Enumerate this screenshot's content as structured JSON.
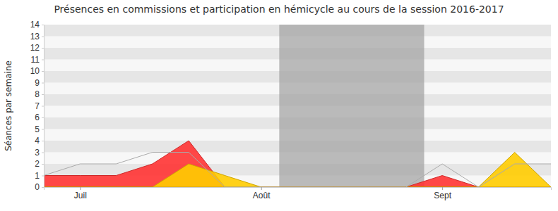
{
  "chart_data": {
    "type": "area",
    "title": "Présences en commissions et participation en hémicycle au cours de la session 2016-2017",
    "y_label": "Séances par semaine",
    "categories": [
      null,
      "Juil",
      null,
      null,
      null,
      null,
      "Août",
      null,
      null,
      null,
      null,
      "Sept",
      null,
      null,
      null
    ],
    "series": [
      {
        "type": "area",
        "color": "#ff3333",
        "values": [
          1,
          1,
          1,
          2,
          4,
          0,
          0,
          0,
          0,
          0,
          0,
          1,
          0,
          0,
          0
        ]
      },
      {
        "type": "area",
        "color": "#ffcc00",
        "values": [
          0,
          0,
          0,
          0,
          2,
          1,
          0,
          0,
          0,
          0,
          0,
          0,
          0,
          3,
          0
        ]
      },
      {
        "type": "line",
        "color": "#aaaaaa",
        "values": [
          1,
          2,
          2,
          3,
          3,
          0,
          0,
          0,
          0,
          0,
          0,
          2,
          0,
          2,
          2
        ]
      }
    ],
    "shaded_range": [
      6.5,
      10.5
    ],
    "ylim": [
      0,
      14
    ],
    "yticks": [
      0,
      1,
      2,
      3,
      4,
      5,
      6,
      7,
      8,
      9,
      10,
      11,
      12,
      13,
      14
    ],
    "grid": true
  }
}
